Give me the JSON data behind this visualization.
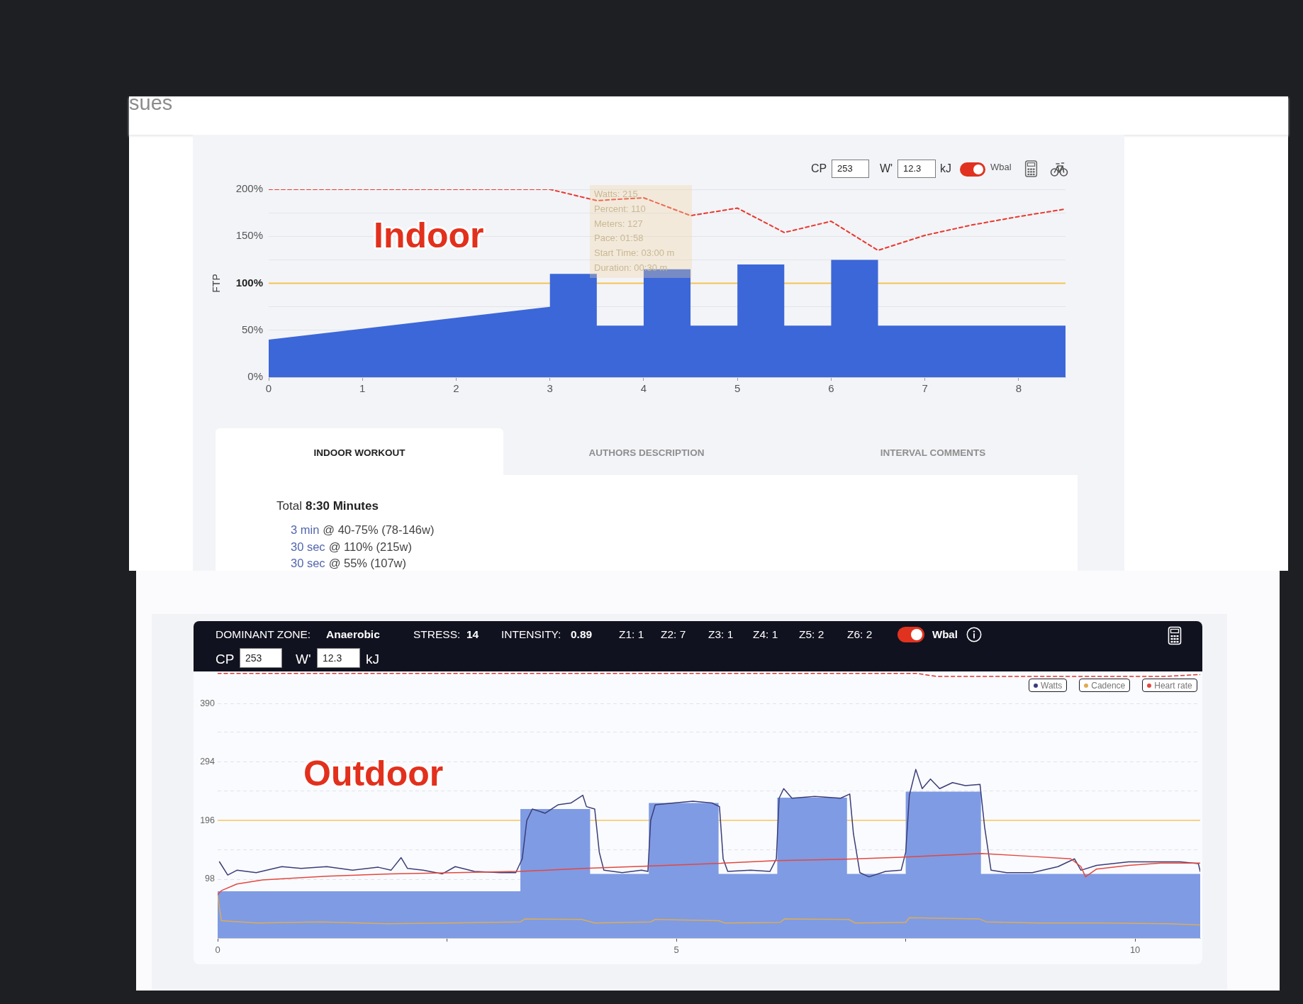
{
  "chart_data": [
    {
      "type": "area",
      "title": "Indoor",
      "ylabel": "FTP",
      "series": [
        {
          "color": "#3c67d8",
          "x": [
            0,
            3,
            3,
            3.5,
            3.5,
            4,
            4,
            4.5,
            4.5,
            5,
            5,
            5.5,
            5.5,
            6,
            6,
            6.5,
            6.5,
            8.5
          ],
          "values": [
            40,
            75,
            110,
            110,
            55,
            55,
            115,
            115,
            55,
            55,
            120,
            120,
            55,
            55,
            125,
            125,
            55,
            55
          ]
        },
        {
          "type": "line",
          "color": "#e8392e",
          "line_style": "dashed",
          "x": [
            0,
            3,
            3.5,
            4,
            4.5,
            5,
            5.5,
            6,
            6.5,
            7,
            7.5,
            8,
            8.5
          ],
          "values": [
            200,
            200,
            188,
            191,
            172,
            180,
            154,
            166,
            135,
            151,
            162,
            171,
            179
          ]
        }
      ],
      "xlim": [
        0,
        8.5
      ],
      "xticks": [
        0,
        1,
        2,
        3,
        4,
        5,
        6,
        7,
        8
      ],
      "ylim": [
        0,
        200
      ],
      "yticks": [
        {
          "value": 0,
          "label": "0%"
        },
        {
          "value": 50,
          "label": "50%"
        },
        {
          "value": 75,
          "label": null
        },
        {
          "value": 100,
          "label": "100%"
        },
        {
          "value": 125,
          "label": null
        },
        {
          "value": 150,
          "label": "150%"
        },
        {
          "value": 175,
          "label": null
        },
        {
          "value": 200,
          "label": "200%"
        }
      ],
      "grid": "y",
      "marker": "none",
      "ref_lines": [
        {
          "axis": "y",
          "value": 100,
          "color": "#f6c350"
        }
      ],
      "annotations": [
        "sues",
        "CP",
        "253",
        "W'",
        "12.3",
        "kJ",
        "Wbal",
        "Watts: 215",
        "Percent: 110",
        "Meters: 127",
        "Pace: 01:58",
        "Start Time: 03:00 m",
        "Duration: 00:30 m"
      ]
    },
    {
      "type": "other",
      "annotations": [
        "INDOOR WORKOUT",
        "AUTHORS DESCRIPTION",
        "INTERVAL COMMENTS",
        "Total",
        "8:30 Minutes",
        "3 min",
        "@ 40-75% (78-146w)",
        "30 sec",
        "@ 110% (215w)",
        "30 sec",
        "@ 55% (107w)"
      ]
    },
    {
      "type": "line",
      "title": "Outdoor",
      "series": [
        {
          "type": "area",
          "color": "#7f9be4",
          "x": [
            0,
            3.3,
            3.3,
            4.06,
            4.06,
            4.7,
            4.7,
            5.46,
            5.46,
            6.1,
            6.1,
            6.86,
            6.86,
            7.5,
            7.5,
            8.32,
            8.32,
            10.71
          ],
          "values": [
            78,
            78,
            215,
            215,
            107,
            107,
            225,
            225,
            107,
            107,
            234,
            234,
            107,
            107,
            244,
            244,
            107,
            107
          ]
        },
        {
          "name": "Watts",
          "color": "#3b3d78",
          "x": [
            0.02,
            0.11,
            0.21,
            0.42,
            0.7,
            0.91,
            1.19,
            1.47,
            1.75,
            1.89,
            2.0,
            2.07,
            2.24,
            2.45,
            2.59,
            2.8,
            3.08,
            3.25,
            3.32,
            3.37,
            3.43,
            3.57,
            3.71,
            3.85,
            3.98,
            4.02,
            4.11,
            4.16,
            4.21,
            4.41,
            4.62,
            4.69,
            4.72,
            4.77,
            4.97,
            5.18,
            5.39,
            5.47,
            5.51,
            5.56,
            5.81,
            6.02,
            6.09,
            6.12,
            6.17,
            6.26,
            6.51,
            6.79,
            6.89,
            6.93,
            7.0,
            7.1,
            7.28,
            7.45,
            7.5,
            7.54,
            7.61,
            7.68,
            7.77,
            7.87,
            8.01,
            8.15,
            8.31,
            8.36,
            8.43,
            8.6,
            8.88,
            9.16,
            9.34,
            9.41,
            9.58,
            9.93,
            10.28,
            10.49,
            10.69,
            10.71
          ],
          "values": [
            127,
            105,
            113,
            109,
            119,
            116,
            119,
            113,
            118,
            113,
            134,
            116,
            113,
            107,
            119,
            111,
            109,
            109,
            132,
            196,
            215,
            208,
            222,
            225,
            238,
            219,
            215,
            143,
            113,
            109,
            113,
            111,
            196,
            222,
            225,
            228,
            225,
            219,
            132,
            111,
            113,
            111,
            132,
            233,
            249,
            233,
            236,
            233,
            240,
            174,
            109,
            102,
            111,
            113,
            143,
            238,
            281,
            249,
            265,
            249,
            259,
            254,
            256,
            185,
            113,
            109,
            109,
            119,
            132,
            113,
            121,
            127,
            127,
            127,
            124,
            111
          ]
        },
        {
          "name": "Cadence",
          "color": "#deab55",
          "x": [
            0,
            0.04,
            0.43,
            1.13,
            1.84,
            2.55,
            3.3,
            3.35,
            3.97,
            4.11,
            4.72,
            4.77,
            5.46,
            5.53,
            6.13,
            6.18,
            6.88,
            6.95,
            7.5,
            7.54,
            8.3,
            8.38,
            8.94,
            9.65,
            10.35,
            10.71
          ],
          "values": [
            71,
            29,
            25,
            27,
            24,
            25,
            27,
            32,
            31,
            25,
            27,
            31,
            29,
            25,
            26,
            32,
            31,
            25,
            26,
            34,
            32,
            27,
            25,
            25,
            24,
            22
          ]
        },
        {
          "name": "Heart rate",
          "color": "#e4473e",
          "x": [
            0,
            0.04,
            0.21,
            0.49,
            1.19,
            1.89,
            2.59,
            3.29,
            3.99,
            4.69,
            5.39,
            6.09,
            6.79,
            7.49,
            8.33,
            8.88,
            9.3,
            9.41,
            9.46,
            9.58,
            9.93,
            10.28,
            10.71
          ],
          "values": [
            72,
            79,
            90,
            97,
            103,
            107,
            109,
            111,
            116,
            120,
            124,
            129,
            131,
            135,
            141,
            136,
            132,
            119,
            102,
            115,
            121,
            125,
            125
          ]
        },
        {
          "color": "#e0342a",
          "line_style": "dashed",
          "x": [
            0,
            7.62,
            7.83,
            10.32,
            10.71
          ],
          "values": [
            441,
            441,
            436,
            436,
            439
          ]
        }
      ],
      "xlim": [
        0,
        10.71
      ],
      "xticks": [
        0,
        {
          "value": 2.5,
          "label": null
        },
        5,
        {
          "value": 7.5,
          "label": null
        },
        10
      ],
      "ylim": [
        0,
        443
      ],
      "yticks": [
        98,
        {
          "value": 147,
          "label": null
        },
        196,
        {
          "value": 245,
          "label": null
        },
        294,
        {
          "value": 343,
          "label": null
        },
        390
      ],
      "grid": "y",
      "legend": "top right",
      "marker": "none",
      "ref_lines": [
        {
          "axis": "y",
          "value": 196,
          "color": "#f7d383"
        }
      ],
      "annotations": [
        "DOMINANT ZONE:",
        "Anaerobic",
        "STRESS:",
        "14",
        "INTENSITY:",
        "0.89",
        "Z1: 1",
        "Z2: 7",
        "Z3: 1",
        "Z4: 1",
        "Z5: 2",
        "Z6: 2",
        "Wbal",
        "CP",
        "253",
        "W'",
        "12.3",
        "kJ"
      ]
    }
  ]
}
